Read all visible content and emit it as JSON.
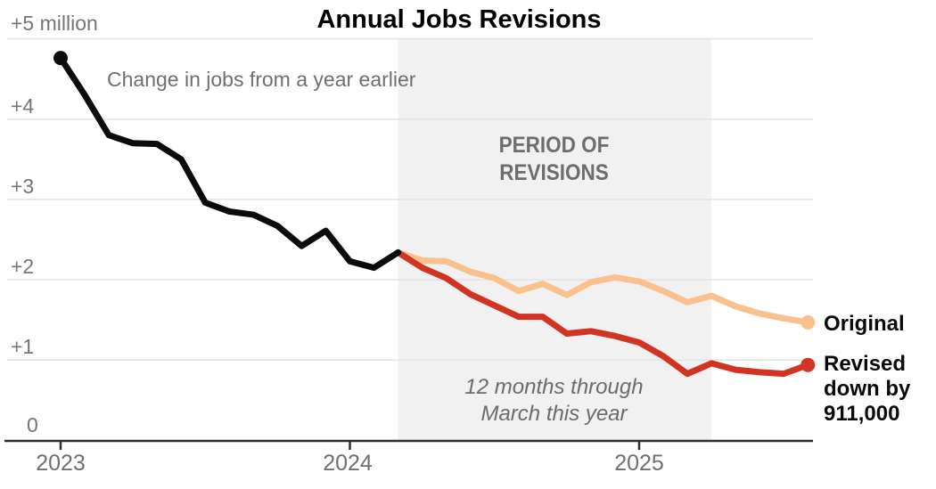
{
  "chart_data": {
    "type": "line",
    "title": "Annual Jobs Revisions",
    "subtitle": "Change in jobs from a year earlier",
    "ylim": [
      0,
      5
    ],
    "yticks": [
      0,
      1,
      2,
      3,
      4,
      5
    ],
    "ytick_labels": [
      "0",
      "+1",
      "+2",
      "+3",
      "+4",
      "+5 million"
    ],
    "grid": "horizontal",
    "legend_position": "right",
    "x_months": [
      "2023-01",
      "2023-02",
      "2023-03",
      "2023-04",
      "2023-05",
      "2023-06",
      "2023-07",
      "2023-08",
      "2023-09",
      "2023-10",
      "2023-11",
      "2023-12",
      "2024-01",
      "2024-02",
      "2024-03",
      "2024-04",
      "2024-05",
      "2024-06",
      "2024-07",
      "2024-08",
      "2024-09",
      "2024-10",
      "2024-11",
      "2024-12",
      "2025-01",
      "2025-02",
      "2025-03",
      "2025-04",
      "2025-05",
      "2025-06",
      "2025-07",
      "2025-08"
    ],
    "xticks": [
      {
        "label": "2023",
        "index": 0
      },
      {
        "label": "2024",
        "index": 12
      },
      {
        "label": "2025",
        "index": 24
      }
    ],
    "band": {
      "from_index": 14,
      "to_index": 27,
      "label": "PERIOD OF\nREVISIONS",
      "note": "12 months through\nMarch this year"
    },
    "series": [
      {
        "name": "jobs-change-pre-revision",
        "legend": null,
        "color": "#0b0b0b",
        "marker": "start",
        "start_index": 0,
        "values": [
          4.76,
          4.3,
          3.8,
          3.7,
          3.69,
          3.5,
          2.96,
          2.85,
          2.81,
          2.67,
          2.42,
          2.61,
          2.23,
          2.15,
          2.34
        ]
      },
      {
        "name": "original",
        "legend": "Original",
        "color": "#f9c18e",
        "marker": "end",
        "start_index": 14,
        "values": [
          2.34,
          2.24,
          2.23,
          2.1,
          2.02,
          1.86,
          1.95,
          1.81,
          1.97,
          2.03,
          1.98,
          1.86,
          1.72,
          1.8,
          1.67,
          1.58,
          1.52,
          1.47
        ]
      },
      {
        "name": "revised",
        "legend": "Revised\ndown by\n911,000",
        "color": "#d23422",
        "marker": "end",
        "start_index": 14,
        "values": [
          2.34,
          2.15,
          2.02,
          1.82,
          1.68,
          1.54,
          1.54,
          1.33,
          1.36,
          1.3,
          1.22,
          1.05,
          0.83,
          0.96,
          0.88,
          0.85,
          0.83,
          0.94
        ]
      }
    ],
    "colors": {
      "band": "#f1f1f1",
      "gridline": "#e3e3e3",
      "axis": "#2e2e2e"
    }
  }
}
